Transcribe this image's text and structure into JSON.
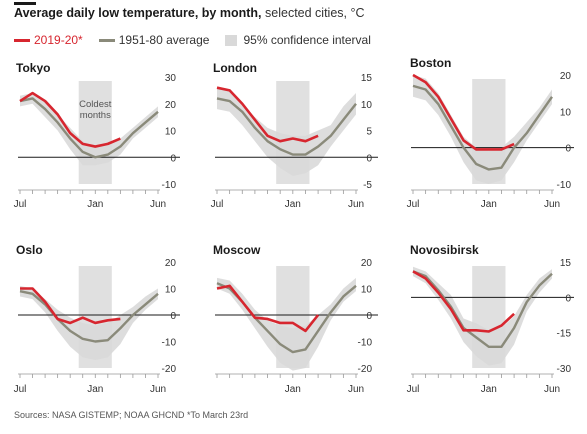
{
  "header": {
    "title_bold": "Average daily low temperature, by month,",
    "title_rest": "selected cities, °C"
  },
  "legend": {
    "current": "2019-20*",
    "average": "1951-80 average",
    "band": "95% confidence interval"
  },
  "source": "Sources: NASA GISTEMP; NOAA GHCND *To March 23rd",
  "colors": {
    "current": "#d7262f",
    "average": "#8a8a7a",
    "band": "#d9d9d9",
    "coldest": "#e0e0e0"
  },
  "chart_data": [
    {
      "type": "line",
      "title": "Tokyo",
      "annotation": "Coldest months",
      "x_ticks": [
        "Jul",
        "Jan",
        "Jun"
      ],
      "ylim": [
        -10,
        30
      ],
      "y_ticks": [
        "30",
        "20",
        "10",
        "0",
        "-10"
      ],
      "y_tick_values": [
        30,
        20,
        10,
        0,
        -10
      ],
      "months": [
        0,
        1,
        2,
        3,
        4,
        5,
        6,
        7,
        8,
        9,
        10,
        11
      ],
      "series": [
        {
          "name": "2019-20*",
          "values": [
            21,
            24,
            21,
            16,
            9,
            5,
            4,
            5,
            7
          ]
        },
        {
          "name": "1951-80 average",
          "values": [
            21,
            22,
            18,
            13,
            7,
            2,
            0,
            1,
            4,
            9,
            13,
            17
          ]
        }
      ],
      "band_lower": [
        19,
        20,
        15,
        10,
        3,
        -3,
        -3,
        -2,
        1,
        7,
        11,
        15
      ],
      "band_upper": [
        23,
        24,
        21,
        16,
        11,
        6,
        4,
        5,
        7,
        11,
        15,
        19
      ]
    },
    {
      "type": "line",
      "title": "London",
      "x_ticks": [
        "Jul",
        "Jan",
        "Jun"
      ],
      "ylim": [
        -5,
        15
      ],
      "y_ticks": [
        "15",
        "10",
        "5",
        "0",
        "-5"
      ],
      "y_tick_values": [
        15,
        10,
        5,
        0,
        -5
      ],
      "months": [
        0,
        1,
        2,
        3,
        4,
        5,
        6,
        7,
        8,
        9,
        10,
        11
      ],
      "series": [
        {
          "name": "2019-20*",
          "values": [
            13,
            12.5,
            10,
            7,
            4,
            3,
            3.5,
            3,
            4
          ]
        },
        {
          "name": "1951-80 average",
          "values": [
            11,
            10.5,
            8.5,
            5.5,
            3,
            1.5,
            0.5,
            0.5,
            2,
            4,
            7,
            10
          ]
        }
      ],
      "band_lower": [
        9,
        8.5,
        6,
        3,
        0,
        -2,
        -3.5,
        -3,
        -1.5,
        2,
        5,
        8
      ],
      "band_upper": [
        13,
        12.5,
        10,
        7.5,
        5.5,
        4.5,
        4,
        4,
        5,
        6,
        9.5,
        12
      ]
    },
    {
      "type": "line",
      "title": "Boston",
      "x_ticks": [
        "Jul",
        "Jan",
        "Jun"
      ],
      "ylim": [
        -10,
        20
      ],
      "y_ticks": [
        "20",
        "10",
        "0",
        "-10"
      ],
      "y_tick_values": [
        20,
        10,
        0,
        -10
      ],
      "months": [
        0,
        1,
        2,
        3,
        4,
        5,
        6,
        7,
        8,
        9,
        10,
        11
      ],
      "series": [
        {
          "name": "2019-20*",
          "values": [
            20,
            18,
            14,
            8,
            2,
            -0.5,
            -0.5,
            -0.5,
            1
          ]
        },
        {
          "name": "1951-80 average",
          "values": [
            17,
            16,
            12,
            6,
            0,
            -4.5,
            -6,
            -5.5,
            0,
            4,
            9,
            14
          ]
        }
      ],
      "band_lower": [
        14,
        13,
        9,
        3,
        -4,
        -9,
        -10,
        -9,
        -4,
        2,
        7,
        12
      ],
      "band_upper": [
        20,
        19,
        15,
        9,
        3,
        0,
        -1,
        0,
        3,
        7,
        11,
        16
      ]
    },
    {
      "type": "line",
      "title": "Oslo",
      "x_ticks": [
        "Jul",
        "Jan",
        "Jun"
      ],
      "ylim": [
        -20,
        20
      ],
      "y_ticks": [
        "20",
        "10",
        "0",
        "-10",
        "-20"
      ],
      "y_tick_values": [
        20,
        10,
        0,
        -10,
        -20
      ],
      "months": [
        0,
        1,
        2,
        3,
        4,
        5,
        6,
        7,
        8,
        9,
        10,
        11
      ],
      "series": [
        {
          "name": "2019-20*",
          "values": [
            10,
            10,
            5,
            -1.5,
            -3,
            -1,
            -3,
            -2,
            -1.5
          ]
        },
        {
          "name": "1951-80 average",
          "values": [
            9,
            8,
            4,
            -1.5,
            -6,
            -9,
            -10,
            -9.5,
            -5,
            0,
            4,
            8
          ]
        }
      ],
      "band_lower": [
        7,
        6,
        1,
        -6,
        -12,
        -16,
        -17,
        -16,
        -11,
        -3,
        2,
        6
      ],
      "band_upper": [
        11,
        10,
        6,
        2,
        -1,
        -3,
        -4,
        -3,
        0,
        3,
        7,
        10
      ]
    },
    {
      "type": "line",
      "title": "Moscow",
      "x_ticks": [
        "Jan",
        "Jun"
      ],
      "ylim": [
        -20,
        20
      ],
      "y_ticks": [
        "20",
        "10",
        "0",
        "-10",
        "-20"
      ],
      "y_tick_values": [
        20,
        10,
        0,
        -10,
        -20
      ],
      "months": [
        0,
        1,
        2,
        3,
        4,
        5,
        6,
        7,
        8,
        9,
        10,
        11
      ],
      "series": [
        {
          "name": "2019-20*",
          "values": [
            10,
            11,
            5,
            -1,
            -1.5,
            -3,
            -3,
            -6,
            0
          ]
        },
        {
          "name": "1951-80 average",
          "values": [
            12,
            10,
            5,
            -1,
            -6,
            -11,
            -14,
            -13,
            -6,
            1,
            7,
            11
          ]
        }
      ],
      "band_lower": [
        10,
        8,
        2,
        -5,
        -12,
        -18,
        -21,
        -20,
        -12,
        -2,
        5,
        9
      ],
      "band_upper": [
        14,
        13,
        8,
        2,
        -2,
        -4,
        -5,
        -4,
        0,
        4,
        10,
        14
      ]
    },
    {
      "type": "line",
      "title": "Novosibirsk",
      "x_ticks": [
        "Jul",
        "Jan",
        "Jun"
      ],
      "ylim": [
        -30,
        15
      ],
      "y_ticks": [
        "15",
        "0",
        "-15",
        "-30"
      ],
      "y_tick_values": [
        15,
        0,
        -15,
        -30
      ],
      "months": [
        0,
        1,
        2,
        3,
        4,
        5,
        6,
        7,
        8,
        9,
        10,
        11
      ],
      "series": [
        {
          "name": "2019-20*",
          "values": [
            11,
            8,
            2,
            -5,
            -14,
            -14,
            -14.5,
            -12,
            -7
          ]
        },
        {
          "name": "1951-80 average",
          "values": [
            11,
            9,
            3,
            -4,
            -13,
            -17,
            -21,
            -21,
            -13,
            -2,
            5,
            10
          ]
        }
      ],
      "band_lower": [
        9,
        6,
        -1,
        -9,
        -19,
        -25,
        -29,
        -28,
        -20,
        -6,
        2,
        8
      ],
      "band_upper": [
        13,
        11,
        6,
        1,
        -9,
        -11,
        -14,
        -13,
        -8,
        1,
        8,
        12
      ]
    }
  ]
}
